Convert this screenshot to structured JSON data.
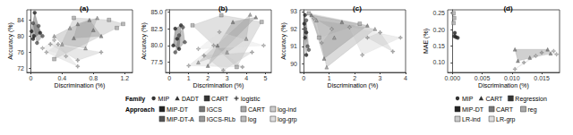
{
  "chart_data": [
    {
      "type": "scatter",
      "title": "(a)",
      "x_label": "Discrimination (%)",
      "y_label": "Accuracy (%)",
      "xlim": [
        -0.05,
        1.3
      ],
      "xticks": [
        0,
        0.4,
        0.8,
        1.2
      ],
      "ylim": [
        71,
        86.5
      ],
      "yticks": [
        72,
        76,
        80,
        84
      ],
      "grid": false,
      "series": [
        {
          "name": "MIP-DT",
          "color": "#222222",
          "marker": "circle",
          "values": [
            [
              0.05,
              85.8
            ],
            [
              0.01,
              81.2
            ],
            [
              0.04,
              80
            ],
            [
              0.03,
              79.3
            ],
            [
              0.12,
              80.8
            ]
          ]
        },
        {
          "name": "MIP-DT-A",
          "color": "#555555",
          "marker": "circle",
          "values": [
            [
              0.1,
              82.5
            ],
            [
              0.03,
              83.2
            ],
            [
              0.08,
              78.3
            ],
            [
              0.15,
              80
            ]
          ]
        },
        {
          "name": "IGCS",
          "color": "#777777",
          "marker": "triangle",
          "values": [
            [
              0.6,
              83
            ],
            [
              0.75,
              84
            ],
            [
              0.9,
              80
            ],
            [
              0.55,
              79.5
            ],
            [
              0.8,
              81.5
            ]
          ]
        },
        {
          "name": "IGCS-RLb",
          "color": "#999999",
          "marker": "triangle",
          "values": [
            [
              0.4,
              78
            ],
            [
              0.5,
              82
            ],
            [
              0.85,
              84.5
            ],
            [
              0.7,
              77
            ],
            [
              0.3,
              80
            ]
          ]
        },
        {
          "name": "CART",
          "color": "#aaaaaa",
          "marker": "square",
          "values": [
            [
              1.0,
              84
            ],
            [
              1.18,
              83
            ],
            [
              0.55,
              84.5
            ],
            [
              0.3,
              74.3
            ],
            [
              1.1,
              82
            ]
          ]
        },
        {
          "name": "log",
          "color": "#bbbbbb",
          "marker": "plus",
          "values": [
            [
              0.25,
              78
            ],
            [
              0.6,
              74
            ],
            [
              0.9,
              76
            ]
          ]
        },
        {
          "name": "log-ind",
          "color": "#cccccc",
          "marker": "plus",
          "values": [
            [
              0.2,
              76
            ],
            [
              0.35,
              78
            ],
            [
              0.6,
              72.5
            ]
          ]
        },
        {
          "name": "log-grp",
          "color": "#dddddd",
          "marker": "plus",
          "values": [
            [
              0.15,
              77
            ],
            [
              0.3,
              79
            ],
            [
              0.45,
              75
            ]
          ]
        }
      ]
    },
    {
      "type": "scatter",
      "title": "(b)",
      "x_label": "Discrimination (%)",
      "y_label": "Accuracy (%)",
      "xlim": [
        -0.2,
        5.3
      ],
      "xticks": [
        0,
        1,
        2,
        3,
        4,
        5
      ],
      "ylim": [
        76,
        85.3
      ],
      "yticks": [
        {
          "value": 77.5,
          "label": "77.5"
        },
        {
          "value": 80,
          "label": "80.0"
        },
        {
          "value": 82.5,
          "label": "82.5"
        },
        {
          "value": 85,
          "label": "85.0"
        }
      ],
      "grid": false,
      "legend": "bottom",
      "legend_groups": [
        {
          "title": "Family",
          "items": [
            {
              "label": "MIP",
              "marker": "circle",
              "color": "#333333"
            },
            {
              "label": "DADT",
              "marker": "triangle",
              "color": "#333333"
            },
            {
              "label": "CART",
              "marker": "square",
              "color": "#333333"
            },
            {
              "label": "logistic",
              "marker": "plus",
              "color": "#333333"
            }
          ]
        },
        {
          "title": "Approach",
          "items": [
            {
              "label": "MIP-DT",
              "marker": "square",
              "color": "#222222"
            },
            {
              "label": "IGCS",
              "marker": "square",
              "color": "#777777"
            },
            {
              "label": "CART",
              "marker": "square",
              "color": "#aaaaaa"
            },
            {
              "label": "log-ind",
              "marker": "square",
              "color": "#cccccc"
            },
            {
              "label": "MIP-DT-A",
              "marker": "square",
              "color": "#555555"
            },
            {
              "label": "IGCS-RLb",
              "marker": "square",
              "color": "#999999"
            },
            {
              "label": "log",
              "marker": "square",
              "color": "#bbbbbb"
            },
            {
              "label": "log-grp",
              "marker": "square",
              "color": "#dddddd"
            }
          ]
        }
      ],
      "series": [
        {
          "name": "MIP-DT",
          "color": "#222222",
          "marker": "circle",
          "values": [
            [
              0.3,
              82.5
            ],
            [
              0.2,
              80
            ],
            [
              0.5,
              79.5
            ],
            [
              0.6,
              83
            ],
            [
              0.4,
              81
            ]
          ]
        },
        {
          "name": "MIP-DT-A",
          "color": "#555555",
          "marker": "circle",
          "values": [
            [
              0.5,
              81.5
            ],
            [
              0.8,
              80.5
            ],
            [
              0.3,
              79
            ],
            [
              0.7,
              82.7
            ]
          ]
        },
        {
          "name": "IGCS",
          "color": "#777777",
          "marker": "triangle",
          "values": [
            [
              2.5,
              80
            ],
            [
              3.3,
              83.5
            ],
            [
              4.5,
              84.2
            ],
            [
              2,
              77
            ]
          ]
        },
        {
          "name": "IGCS-RLb",
          "color": "#999999",
          "marker": "triangle",
          "values": [
            [
              1.5,
              77.5
            ],
            [
              3,
              79
            ],
            [
              4,
              81
            ],
            [
              4.2,
              84.6
            ]
          ]
        },
        {
          "name": "CART",
          "color": "#aaaaaa",
          "marker": "square",
          "values": [
            [
              1.2,
              83
            ],
            [
              4.8,
              83.5
            ],
            [
              3.5,
              76.8
            ],
            [
              2.7,
              84.5
            ]
          ]
        },
        {
          "name": "log",
          "color": "#bbbbbb",
          "marker": "plus",
          "values": [
            [
              1.8,
              78.5
            ],
            [
              2.8,
              76.3
            ],
            [
              4.3,
              79
            ]
          ]
        },
        {
          "name": "log-ind",
          "color": "#cccccc",
          "marker": "plus",
          "values": [
            [
              1,
              77
            ],
            [
              2.3,
              80
            ],
            [
              3.8,
              76.8
            ]
          ]
        },
        {
          "name": "log-grp",
          "color": "#dddddd",
          "marker": "plus",
          "values": [
            [
              1.5,
              79.5
            ],
            [
              2.6,
              82
            ],
            [
              4.9,
              80
            ]
          ]
        }
      ]
    },
    {
      "type": "scatter",
      "title": "(c)",
      "x_label": "Discrimination (%)",
      "y_label": "Accuracy (%)",
      "xlim": [
        -0.15,
        4
      ],
      "xticks": [
        0,
        1,
        2,
        3,
        4
      ],
      "ylim": [
        89.5,
        93.1
      ],
      "yticks": [
        90,
        91,
        92,
        93
      ],
      "grid": false,
      "series": [
        {
          "name": "MIP-DT",
          "color": "#222222",
          "marker": "circle",
          "values": [
            [
              0.05,
              92.8
            ],
            [
              0.02,
              92.3
            ],
            [
              0.1,
              91.8
            ],
            [
              0.05,
              91.5
            ],
            [
              0.1,
              90.5
            ]
          ]
        },
        {
          "name": "MIP-DT-A",
          "color": "#555555",
          "marker": "circle",
          "values": [
            [
              0.1,
              92.5
            ],
            [
              0.15,
              91
            ],
            [
              0.05,
              92
            ],
            [
              0.2,
              90.8
            ]
          ]
        },
        {
          "name": "IGCS",
          "color": "#777777",
          "marker": "triangle",
          "values": [
            [
              0.3,
              92.8
            ],
            [
              1.5,
              92.4
            ],
            [
              2.5,
              92.2
            ],
            [
              0.8,
              90.3
            ]
          ]
        },
        {
          "name": "IGCS-RLb",
          "color": "#999999",
          "marker": "triangle",
          "values": [
            [
              0.5,
              92.5
            ],
            [
              1.2,
              91.5
            ],
            [
              2.8,
              92
            ],
            [
              0.9,
              89.8
            ]
          ]
        },
        {
          "name": "CART",
          "color": "#aaaaaa",
          "marker": "square",
          "values": [
            [
              0.2,
              92.9
            ],
            [
              2.2,
              92.3
            ],
            [
              0.6,
              91.5
            ]
          ]
        },
        {
          "name": "log",
          "color": "#bbbbbb",
          "marker": "plus",
          "values": [
            [
              3.0,
              91.8
            ],
            [
              3.5,
              90.7
            ],
            [
              2.5,
              91.5
            ]
          ]
        },
        {
          "name": "log-ind",
          "color": "#cccccc",
          "marker": "plus",
          "values": [
            [
              1.8,
              92.1
            ],
            [
              3.8,
              91.5
            ],
            [
              2.3,
              90.5
            ]
          ]
        },
        {
          "name": "log-grp",
          "color": "#dddddd",
          "marker": "plus",
          "values": [
            [
              0.4,
              92.6
            ],
            [
              1.1,
              92
            ],
            [
              0.7,
              91.2
            ]
          ]
        }
      ]
    },
    {
      "type": "scatter",
      "title": "(d)",
      "x_label": "Discrimination (%)",
      "y_label": "MAE (%)",
      "xlim": [
        -0.0008,
        0.018
      ],
      "xticks": [
        {
          "value": 0,
          "label": "0.000"
        },
        {
          "value": 0.005,
          "label": "0.005"
        },
        {
          "value": 0.01,
          "label": "0.010"
        },
        {
          "value": 0.015,
          "label": "0.015"
        }
      ],
      "ylim": [
        0.07,
        0.26
      ],
      "yticks": [
        {
          "value": 0.1,
          "label": "0.10"
        },
        {
          "value": 0.15,
          "label": "0.15"
        },
        {
          "value": 0.2,
          "label": "0.20"
        },
        {
          "value": 0.25,
          "label": "0.25"
        }
      ],
      "grid": false,
      "legend": "bottom",
      "legend_groups": [
        {
          "title": null,
          "items": [
            {
              "label": "MIP",
              "marker": "circle",
              "color": "#333333"
            },
            {
              "label": "CART",
              "marker": "triangle",
              "color": "#333333"
            },
            {
              "label": "Regression",
              "marker": "square",
              "color": "#333333"
            }
          ]
        },
        {
          "title": null,
          "items": [
            {
              "label": "MIP-DT",
              "marker": "square",
              "color": "#222222"
            },
            {
              "label": "CART",
              "marker": "square",
              "color": "#777777"
            },
            {
              "label": "reg",
              "marker": "square",
              "color": "#aaaaaa"
            },
            {
              "label": "LR-ind",
              "marker": "square",
              "color": "#cccccc"
            },
            {
              "label": "LR-grp",
              "marker": "square",
              "color": "#dddddd"
            }
          ]
        }
      ],
      "series": [
        {
          "name": "MIP-DT",
          "color": "#222222",
          "marker": "circle",
          "values": [
            [
              0.0003,
              0.18
            ],
            [
              0.0006,
              0.177
            ],
            [
              0.0009,
              0.175
            ],
            [
              0.0004,
              0.19
            ]
          ]
        },
        {
          "name": "CART",
          "color": "#777777",
          "marker": "triangle",
          "values": [
            [
              0.011,
              0.105
            ],
            [
              0.016,
              0.14
            ],
            [
              0.0165,
              0.128
            ],
            [
              0.013,
              0.115
            ],
            [
              0.0105,
              0.14
            ]
          ]
        },
        {
          "name": "reg",
          "color": "#aaaaaa",
          "marker": "square",
          "values": [
            [
              0.0002,
              0.25
            ],
            [
              0.0003,
              0.235
            ],
            [
              0.0002,
              0.22
            ]
          ]
        },
        {
          "name": "LR-ind",
          "color": "#cccccc",
          "marker": "plus",
          "values": [
            [
              0.0105,
              0.08
            ],
            [
              0.015,
              0.13
            ],
            [
              0.012,
              0.1
            ]
          ]
        },
        {
          "name": "LR-grp",
          "color": "#dddddd",
          "marker": "plus",
          "values": [
            [
              0.017,
              0.135
            ],
            [
              0.0175,
              0.125
            ],
            [
              0.014,
              0.12
            ]
          ]
        }
      ]
    }
  ]
}
